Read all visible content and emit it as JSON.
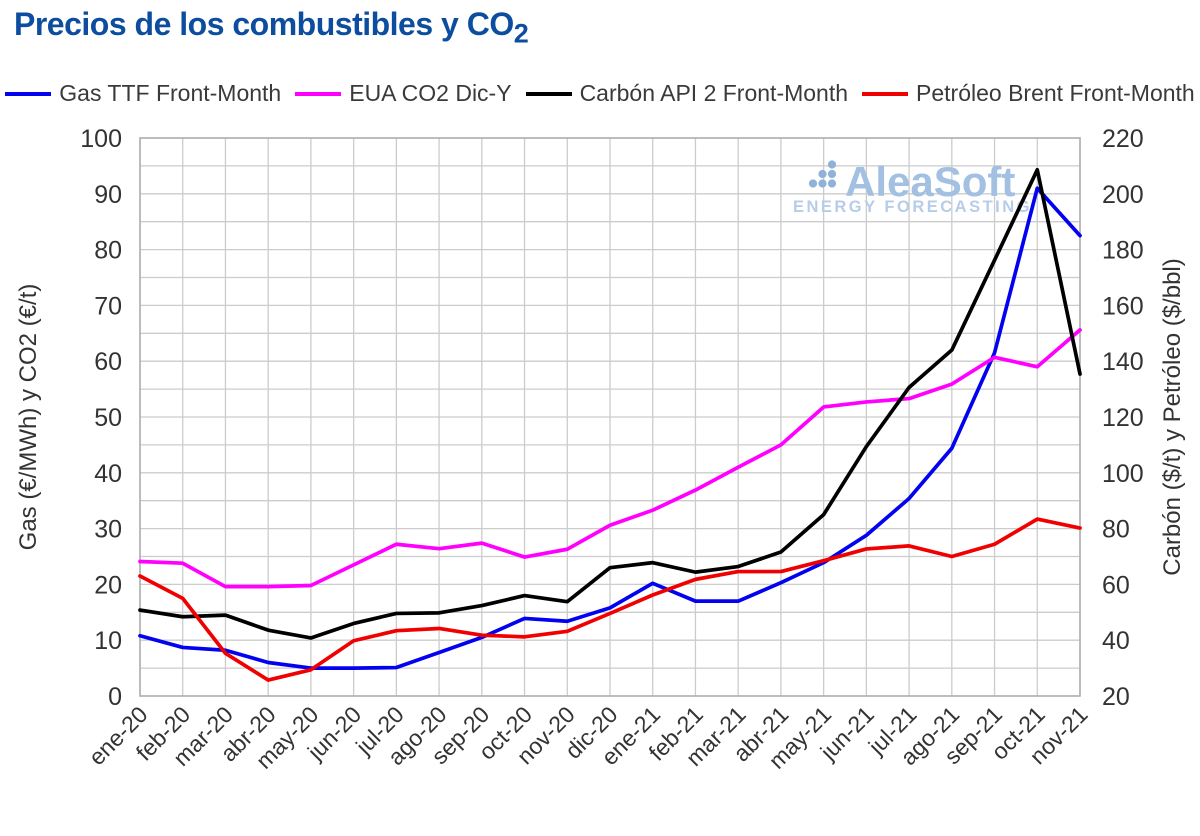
{
  "page": {
    "title": {
      "text": "Precios de los combustibles y CO",
      "subscript": "2",
      "color": "#0d4da0"
    }
  },
  "watermark": {
    "brand": "AleaSoft",
    "tagline": "ENERGY FORECASTING",
    "brand_color": "#a2c0e2",
    "tagline_color": "#b6cce9",
    "dot_color": "#8fb2d9"
  },
  "chart_data": {
    "type": "line",
    "title": "Precios de los combustibles y CO2",
    "categories": [
      "ene-20",
      "feb-20",
      "mar-20",
      "abr-20",
      "may-20",
      "jun-20",
      "jul-20",
      "ago-20",
      "sep-20",
      "oct-20",
      "nov-20",
      "dic-20",
      "ene-21",
      "feb-21",
      "mar-21",
      "abr-21",
      "may-21",
      "jun-21",
      "jul-21",
      "ago-21",
      "sep-21",
      "oct-21",
      "nov-21"
    ],
    "series": [
      {
        "name": "Gas TTF Front-Month",
        "axis": "left",
        "color": "#0202f0",
        "unit": "€/MWh",
        "values": [
          10.8,
          8.7,
          8.2,
          6.0,
          5.0,
          5.0,
          5.1,
          7.8,
          10.5,
          13.9,
          13.4,
          15.8,
          20.2,
          17.0,
          17.0,
          20.3,
          23.9,
          28.8,
          35.4,
          44.4,
          61.5,
          91.0,
          82.5
        ]
      },
      {
        "name": "EUA CO2 Dic-Y",
        "axis": "left",
        "color": "#ff00ff",
        "unit": "€/t",
        "values": [
          24.1,
          23.8,
          19.6,
          19.6,
          19.8,
          23.5,
          27.2,
          26.4,
          27.4,
          24.9,
          26.3,
          30.6,
          33.3,
          36.9,
          41.0,
          45.0,
          51.8,
          52.7,
          53.3,
          55.9,
          60.7,
          59.0,
          65.6
        ]
      },
      {
        "name": "Carbón API 2 Front-Month",
        "axis": "right",
        "color": "#000000",
        "unit": "$/t",
        "values": [
          50.8,
          48.4,
          49.0,
          43.6,
          40.8,
          46.0,
          49.6,
          49.8,
          52.4,
          56.0,
          53.8,
          66.0,
          67.8,
          64.4,
          66.4,
          71.6,
          85.0,
          109.4,
          130.6,
          144.0,
          176.2,
          208.6,
          135.4
        ]
      },
      {
        "name": "Petróleo Brent Front-Month",
        "axis": "right",
        "color": "#f00000",
        "unit": "$/bbl",
        "values": [
          63.0,
          55.0,
          35.3,
          25.7,
          29.4,
          39.8,
          43.4,
          44.2,
          41.8,
          41.2,
          43.2,
          49.6,
          56.2,
          61.8,
          64.6,
          64.6,
          68.5,
          72.7,
          73.8,
          70.0,
          74.4,
          83.4,
          80.2
        ]
      }
    ],
    "left_axis": {
      "label": "Gas (€/MWh) y CO2 (€/t)",
      "min": 0,
      "max": 100,
      "tick_step": 10
    },
    "right_axis": {
      "label": "Carbón ($/t) y Petróleo ($/bbl)",
      "min": 20,
      "max": 220,
      "tick_step": 20
    },
    "grid": {
      "h_step_left_units": 5,
      "line_color": "#cccccc",
      "frame_color": "#b0b0b0"
    },
    "tick_text_color": "#333333",
    "legend_position": "top"
  }
}
